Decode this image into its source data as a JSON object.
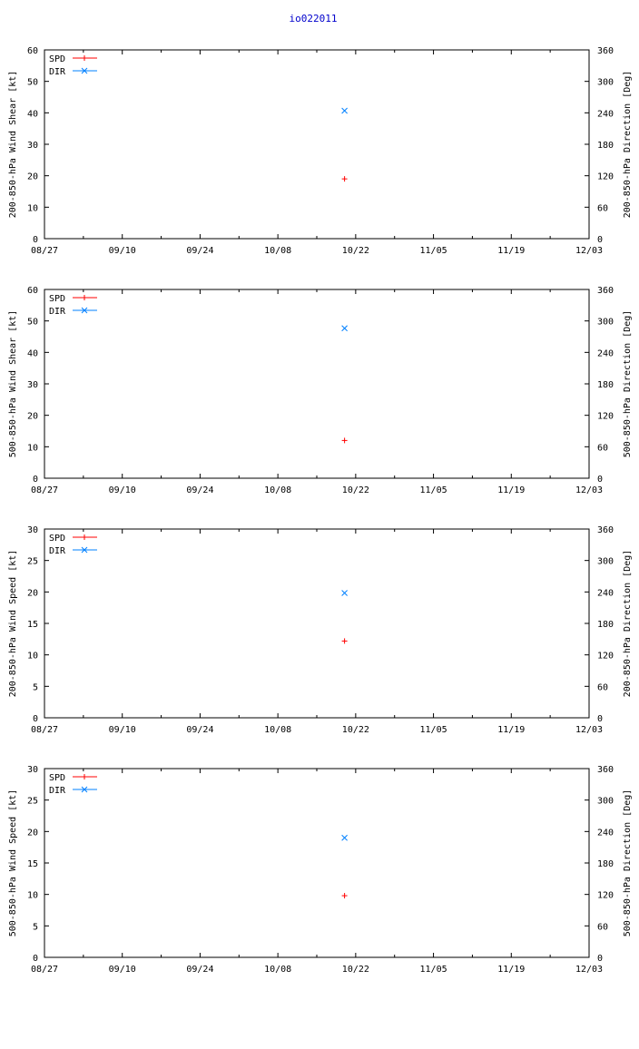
{
  "page": {
    "title": "io022011"
  },
  "colors": {
    "spd": "#ff0000",
    "dir": "#0080ff",
    "axis": "#000000",
    "title": "#0000cc"
  },
  "chart_data": [
    {
      "type": "scatter",
      "title": "",
      "ylabel": "200-850-hPa Wind Shear [kt]",
      "y2label": "200-850-hPa Direction [Deg]",
      "ylim": [
        0,
        60
      ],
      "yticks": [
        0,
        10,
        20,
        30,
        40,
        50,
        60
      ],
      "y2lim": [
        0,
        360
      ],
      "y2ticks": [
        0,
        60,
        120,
        180,
        240,
        300,
        360
      ],
      "xlim": [
        "2011-08-27",
        "2011-12-03"
      ],
      "xticks": [
        "08/27",
        "09/10",
        "09/24",
        "10/08",
        "10/22",
        "11/05",
        "11/19",
        "12/03"
      ],
      "legend_position": "top-left",
      "series": [
        {
          "name": "SPD",
          "axis": "left",
          "marker": "plus",
          "x": [
            "2011-10-20"
          ],
          "y": [
            19
          ]
        },
        {
          "name": "DIR",
          "axis": "right",
          "marker": "cross",
          "x": [
            "2011-10-20"
          ],
          "y": [
            244
          ]
        }
      ]
    },
    {
      "type": "scatter",
      "title": "",
      "ylabel": "500-850-hPa Wind Shear [kt]",
      "y2label": "500-850-hPa Direction [Deg]",
      "ylim": [
        0,
        60
      ],
      "yticks": [
        0,
        10,
        20,
        30,
        40,
        50,
        60
      ],
      "y2lim": [
        0,
        360
      ],
      "y2ticks": [
        0,
        60,
        120,
        180,
        240,
        300,
        360
      ],
      "xlim": [
        "2011-08-27",
        "2011-12-03"
      ],
      "xticks": [
        "08/27",
        "09/10",
        "09/24",
        "10/08",
        "10/22",
        "11/05",
        "11/19",
        "12/03"
      ],
      "legend_position": "top-left",
      "series": [
        {
          "name": "SPD",
          "axis": "left",
          "marker": "plus",
          "x": [
            "2011-10-20"
          ],
          "y": [
            12
          ]
        },
        {
          "name": "DIR",
          "axis": "right",
          "marker": "cross",
          "x": [
            "2011-10-20"
          ],
          "y": [
            286
          ]
        }
      ]
    },
    {
      "type": "scatter",
      "title": "",
      "ylabel": "200-850-hPa Wind Speed [kt]",
      "y2label": "200-850-hPa Direction [Deg]",
      "ylim": [
        0,
        30
      ],
      "yticks": [
        0,
        5,
        10,
        15,
        20,
        25,
        30
      ],
      "y2lim": [
        0,
        360
      ],
      "y2ticks": [
        0,
        60,
        120,
        180,
        240,
        300,
        360
      ],
      "xlim": [
        "2011-08-27",
        "2011-12-03"
      ],
      "xticks": [
        "08/27",
        "09/10",
        "09/24",
        "10/08",
        "10/22",
        "11/05",
        "11/19",
        "12/03"
      ],
      "legend_position": "top-left",
      "series": [
        {
          "name": "SPD",
          "axis": "left",
          "marker": "plus",
          "x": [
            "2011-10-20"
          ],
          "y": [
            12.2
          ]
        },
        {
          "name": "DIR",
          "axis": "right",
          "marker": "cross",
          "x": [
            "2011-10-20"
          ],
          "y": [
            238
          ]
        }
      ]
    },
    {
      "type": "scatter",
      "title": "",
      "ylabel": "500-850-hPa Wind Speed [kt]",
      "y2label": "500-850-hPa Direction [Deg]",
      "ylim": [
        0,
        30
      ],
      "yticks": [
        0,
        5,
        10,
        15,
        20,
        25,
        30
      ],
      "y2lim": [
        0,
        360
      ],
      "y2ticks": [
        0,
        60,
        120,
        180,
        240,
        300,
        360
      ],
      "xlim": [
        "2011-08-27",
        "2011-12-03"
      ],
      "xticks": [
        "08/27",
        "09/10",
        "09/24",
        "10/08",
        "10/22",
        "11/05",
        "11/19",
        "12/03"
      ],
      "legend_position": "top-left",
      "series": [
        {
          "name": "SPD",
          "axis": "left",
          "marker": "plus",
          "x": [
            "2011-10-20"
          ],
          "y": [
            9.8
          ]
        },
        {
          "name": "DIR",
          "axis": "right",
          "marker": "cross",
          "x": [
            "2011-10-20"
          ],
          "y": [
            228
          ]
        }
      ]
    }
  ]
}
